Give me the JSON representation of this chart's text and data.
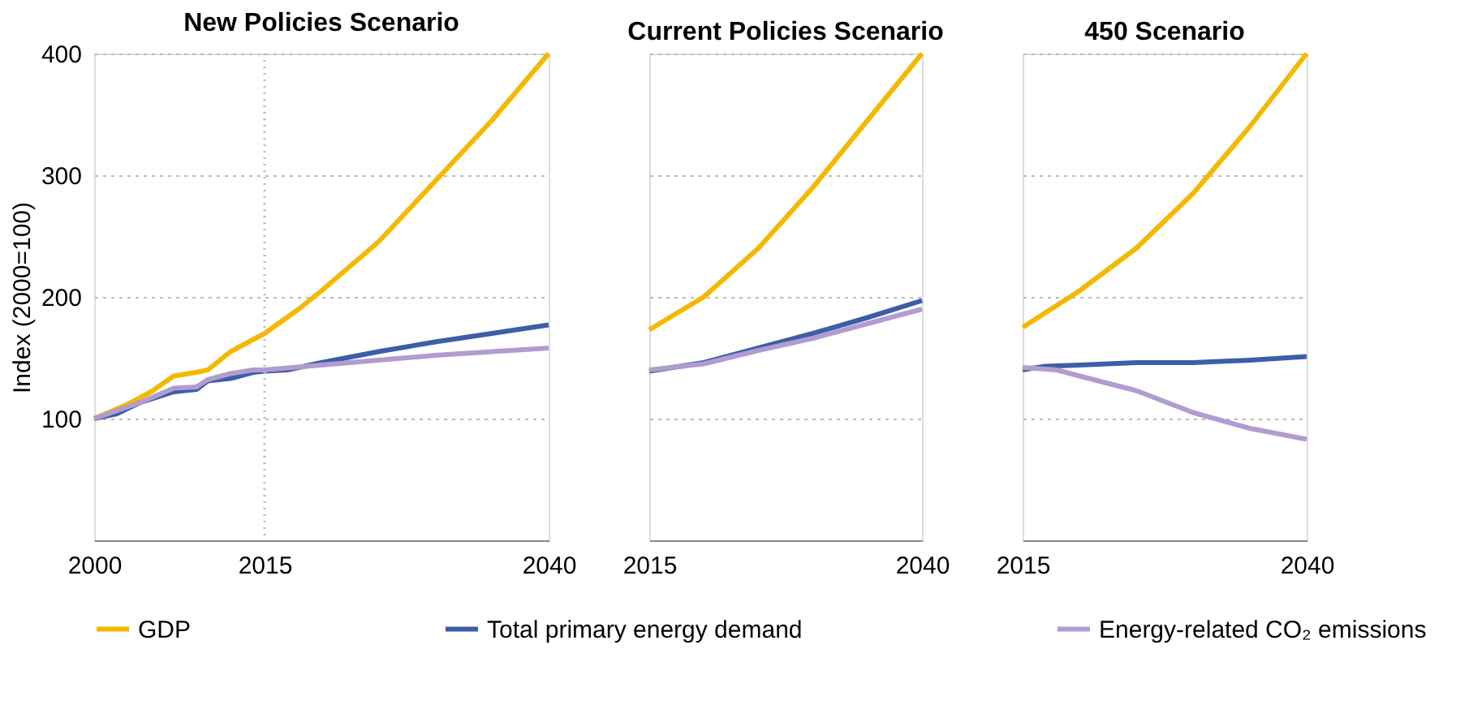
{
  "chart_data": [
    {
      "type": "line",
      "title": "New Policies Scenario",
      "ylabel": "Index (2000=100)",
      "xlim": [
        2000,
        2040
      ],
      "xticks": [
        2000,
        2015,
        2040
      ],
      "ylim": [
        0,
        400
      ],
      "yticks": [
        100,
        200,
        300,
        400
      ],
      "grid": "y",
      "legend": "bottom",
      "line_style": "solid",
      "marker": "none",
      "ref_lines": [
        {
          "axis": "x",
          "value": 2015,
          "color": "#bbbbbb",
          "line_style": "dotted"
        }
      ],
      "series": [
        {
          "name": "GDP",
          "color": "#f5b800",
          "x": [
            2000,
            2003,
            2005,
            2007,
            2009,
            2010,
            2012,
            2015,
            2018,
            2020,
            2025,
            2030,
            2035,
            2040
          ],
          "values": [
            100,
            112,
            122,
            135,
            138,
            140,
            155,
            170,
            190,
            205,
            245,
            295,
            345,
            400
          ]
        },
        {
          "name": "Total primary energy demand",
          "color": "#3d5da8",
          "x": [
            2000,
            2002,
            2004,
            2007,
            2009,
            2010,
            2012,
            2014,
            2015,
            2017,
            2020,
            2025,
            2030,
            2035,
            2040
          ],
          "values": [
            100,
            104,
            113,
            122,
            124,
            131,
            133,
            138,
            139,
            140,
            146,
            155,
            163,
            170,
            177
          ]
        },
        {
          "name": "Energy-related CO₂ emissions",
          "color": "#b19cd0",
          "x": [
            2000,
            2004,
            2007,
            2009,
            2010,
            2012,
            2014,
            2015,
            2020,
            2025,
            2030,
            2035,
            2040
          ],
          "values": [
            100,
            113,
            125,
            126,
            132,
            137,
            140,
            140,
            144,
            148,
            152,
            155,
            158
          ]
        }
      ]
    },
    {
      "type": "line",
      "title": "Current Policies Scenario",
      "xlim": [
        2015,
        2040
      ],
      "xticks": [
        2015,
        2040
      ],
      "ylim": [
        0,
        400
      ],
      "yticks": [
        100,
        200,
        300,
        400
      ],
      "grid": "y",
      "tick_labels": "x",
      "line_style": "solid",
      "marker": "none",
      "series": [
        {
          "color": "#f5b800",
          "x": [
            2015,
            2020,
            2025,
            2030,
            2035,
            2040
          ],
          "values": [
            173,
            200,
            240,
            290,
            345,
            400
          ]
        },
        {
          "color": "#3d5da8",
          "x": [
            2015,
            2020,
            2025,
            2030,
            2035,
            2040
          ],
          "values": [
            139,
            146,
            158,
            170,
            183,
            197
          ]
        },
        {
          "color": "#b19cd0",
          "x": [
            2015,
            2020,
            2025,
            2030,
            2035,
            2040
          ],
          "values": [
            140,
            145,
            156,
            166,
            178,
            190
          ]
        }
      ]
    },
    {
      "type": "line",
      "title": "450 Scenario",
      "xlim": [
        2015,
        2040
      ],
      "xticks": [
        2015,
        2040
      ],
      "ylim": [
        0,
        400
      ],
      "yticks": [
        100,
        200,
        300,
        400
      ],
      "grid": "y",
      "tick_labels": "x",
      "line_style": "solid",
      "marker": "none",
      "series": [
        {
          "color": "#f5b800",
          "x": [
            2015,
            2020,
            2025,
            2030,
            2035,
            2040
          ],
          "values": [
            175,
            205,
            240,
            285,
            340,
            400
          ]
        },
        {
          "color": "#3d5da8",
          "x": [
            2015,
            2017,
            2020,
            2025,
            2030,
            2035,
            2040
          ],
          "values": [
            140,
            143,
            144,
            146,
            146,
            148,
            151
          ]
        },
        {
          "color": "#b19cd0",
          "x": [
            2015,
            2018,
            2020,
            2025,
            2030,
            2035,
            2040
          ],
          "values": [
            142,
            140,
            135,
            123,
            105,
            92,
            83
          ]
        }
      ]
    }
  ]
}
